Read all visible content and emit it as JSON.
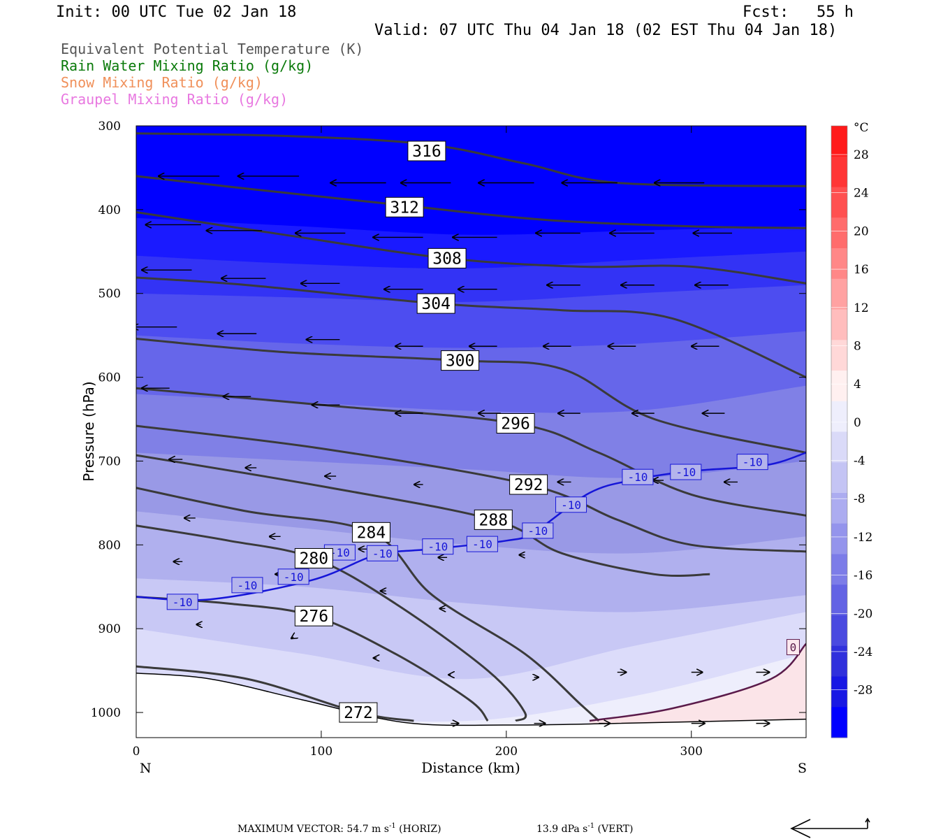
{
  "header": {
    "init": "Init: 00 UTC Tue 02 Jan 18",
    "fcst": "Fcst:   55 h",
    "valid": "Valid: 07 UTC Thu 04 Jan 18 (02 EST Thu 04 Jan 18)"
  },
  "legend": [
    {
      "label": "Equivalent Potential Temperature (K)",
      "color": "#555555"
    },
    {
      "label": "Rain Water Mixing Ratio (g/kg)",
      "color": "#0a7a0a"
    },
    {
      "label": "Snow Mixing Ratio (g/kg)",
      "color": "#f0905a"
    },
    {
      "label": "Graupel Mixing Ratio (g/kg)",
      "color": "#e878e0"
    }
  ],
  "footer": {
    "max_vector": "MAXIMUM VECTOR:  54.7 m s",
    "sup1": "-1",
    "horiz": " (HORIZ)",
    "vert_val": "13.9 dPa s",
    "sup2": "-1",
    "vert": " (VERT)"
  },
  "chart_data": {
    "type": "cross-section",
    "x_axis": {
      "label": "Distance (km)",
      "range": [
        0,
        362
      ],
      "ticks": [
        0,
        100,
        200,
        300
      ],
      "left_end": "N",
      "right_end": "S"
    },
    "y_axis": {
      "label": "Pressure (hPa)",
      "range": [
        300,
        1030
      ],
      "ticks": [
        300,
        400,
        500,
        600,
        700,
        800,
        900,
        1000
      ],
      "inverted": true
    },
    "colorbar": {
      "unit": "°C",
      "labels": [
        "28",
        "24",
        "20",
        "16",
        "12",
        "8",
        "4",
        "0",
        "-4",
        "-8",
        "-12",
        "-16",
        "-20",
        "-24",
        "-28"
      ],
      "levels": [
        28,
        24,
        20,
        16,
        12,
        8,
        4,
        0,
        -4,
        -8,
        -12,
        -16,
        -20,
        -24,
        -28
      ],
      "colors": [
        "#ff1a1a",
        "#ff3535",
        "#ff5050",
        "#ff6c6c",
        "#ff8787",
        "#ffa2a2",
        "#ffbdbd",
        "#ffd8d8",
        "#fff0f0",
        "#eeeefc",
        "#dadaf8",
        "#c4c4f4",
        "#acacf0",
        "#9494ec",
        "#7c7ce8",
        "#6363e4",
        "#4a4ae0",
        "#3030dc",
        "#1818e4",
        "#0000ff"
      ]
    },
    "temperature_bands": [
      {
        "color": "#0000ff",
        "p": [
          300,
          300,
          300,
          300,
          300
        ]
      },
      {
        "color": "#1a1aff",
        "p": [
          410,
          420,
          430,
          425,
          420
        ]
      },
      {
        "color": "#3333f5",
        "p": [
          455,
          465,
          470,
          460,
          450
        ]
      },
      {
        "color": "#4d4df0",
        "p": [
          500,
          505,
          510,
          500,
          490
        ]
      },
      {
        "color": "#6666ea",
        "p": [
          550,
          560,
          565,
          560,
          545
        ]
      },
      {
        "color": "#8080e6",
        "p": [
          620,
          630,
          640,
          640,
          610
        ]
      },
      {
        "color": "#9999e6",
        "p": [
          690,
          700,
          710,
          720,
          700
        ]
      },
      {
        "color": "#b0b0ee",
        "p": [
          760,
          780,
          800,
          810,
          790
        ]
      },
      {
        "color": "#c8c8f5",
        "p": [
          840,
          850,
          870,
          880,
          860
        ]
      },
      {
        "color": "#dcdcfa",
        "p": [
          900,
          930,
          960,
          920,
          880
        ]
      },
      {
        "color": "#eeeefc",
        "p": [
          960,
          1000,
          1010,
          980,
          930
        ]
      }
    ],
    "theta_e_contours": [
      {
        "label": "316",
        "label_at": [
          157,
          330
        ],
        "points": [
          [
            0,
            309
          ],
          [
            80,
            312
          ],
          [
            157,
            322
          ],
          [
            210,
            345
          ],
          [
            260,
            368
          ],
          [
            362,
            372
          ]
        ]
      },
      {
        "label": "312",
        "label_at": [
          145,
          397
        ],
        "points": [
          [
            0,
            360
          ],
          [
            60,
            375
          ],
          [
            145,
            395
          ],
          [
            220,
            412
          ],
          [
            300,
            420
          ],
          [
            362,
            422
          ]
        ]
      },
      {
        "label": "308",
        "label_at": [
          168,
          458
        ],
        "points": [
          [
            0,
            403
          ],
          [
            80,
            430
          ],
          [
            168,
            458
          ],
          [
            240,
            468
          ],
          [
            300,
            468
          ],
          [
            362,
            488
          ]
        ]
      },
      {
        "label": "304",
        "label_at": [
          162,
          512
        ],
        "points": [
          [
            0,
            481
          ],
          [
            60,
            490
          ],
          [
            162,
            512
          ],
          [
            230,
            520
          ],
          [
            290,
            530
          ],
          [
            362,
            600
          ]
        ]
      },
      {
        "label": "300",
        "label_at": [
          175,
          580
        ],
        "points": [
          [
            0,
            554
          ],
          [
            80,
            570
          ],
          [
            175,
            580
          ],
          [
            230,
            590
          ],
          [
            280,
            650
          ],
          [
            362,
            690
          ]
        ]
      },
      {
        "label": "296",
        "label_at": [
          205,
          655
        ],
        "points": [
          [
            0,
            613
          ],
          [
            100,
            633
          ],
          [
            205,
            655
          ],
          [
            250,
            690
          ],
          [
            300,
            740
          ],
          [
            362,
            765
          ]
        ]
      },
      {
        "label": "292",
        "label_at": [
          212,
          728
        ],
        "points": [
          [
            0,
            658
          ],
          [
            100,
            685
          ],
          [
            212,
            728
          ],
          [
            260,
            770
          ],
          [
            300,
            800
          ],
          [
            362,
            808
          ]
        ]
      },
      {
        "label": "288",
        "label_at": [
          193,
          770
        ],
        "points": [
          [
            0,
            693
          ],
          [
            100,
            730
          ],
          [
            193,
            770
          ],
          [
            230,
            810
          ],
          [
            280,
            835
          ],
          [
            310,
            835
          ]
        ]
      },
      {
        "label": "284",
        "label_at": [
          127,
          785
        ],
        "points": [
          [
            0,
            732
          ],
          [
            60,
            760
          ],
          [
            127,
            785
          ],
          [
            160,
            860
          ],
          [
            210,
            930
          ],
          [
            240,
            990
          ],
          [
            250,
            1010
          ]
        ]
      },
      {
        "label": "280",
        "label_at": [
          96,
          816
        ],
        "points": [
          [
            0,
            777
          ],
          [
            50,
            795
          ],
          [
            96,
            816
          ],
          [
            140,
            870
          ],
          [
            190,
            950
          ],
          [
            210,
            1000
          ],
          [
            205,
            1010
          ]
        ]
      },
      {
        "label": "276",
        "label_at": [
          96,
          885
        ],
        "points": [
          [
            0,
            862
          ],
          [
            50,
            870
          ],
          [
            96,
            885
          ],
          [
            140,
            930
          ],
          [
            180,
            985
          ],
          [
            190,
            1010
          ]
        ]
      },
      {
        "label": "272",
        "label_at": [
          120,
          1000
        ],
        "points": [
          [
            0,
            945
          ],
          [
            60,
            960
          ],
          [
            120,
            1000
          ],
          [
            150,
            1010
          ]
        ]
      }
    ],
    "isotherm_-10": {
      "label": "-10",
      "points": [
        [
          0,
          862
        ],
        [
          40,
          865
        ],
        [
          95,
          842
        ],
        [
          130,
          812
        ],
        [
          160,
          805
        ],
        [
          200,
          795
        ],
        [
          215,
          785
        ],
        [
          245,
          738
        ],
        [
          270,
          722
        ],
        [
          300,
          712
        ],
        [
          340,
          705
        ],
        [
          362,
          690
        ]
      ],
      "label_positions": [
        [
          25,
          868
        ],
        [
          60,
          848
        ],
        [
          85,
          838
        ],
        [
          110,
          809
        ],
        [
          133,
          810
        ],
        [
          163,
          802
        ],
        [
          187,
          799
        ],
        [
          217,
          783
        ],
        [
          235,
          752
        ],
        [
          271,
          719
        ],
        [
          297,
          713
        ],
        [
          333,
          701
        ]
      ]
    },
    "isotherm_0": {
      "label": "0",
      "points": [
        [
          245,
          1010
        ],
        [
          290,
          995
        ],
        [
          343,
          960
        ],
        [
          362,
          918
        ]
      ],
      "label_at": [
        355,
        922
      ]
    },
    "terrain": {
      "points": [
        [
          0,
          953
        ],
        [
          40,
          960
        ],
        [
          90,
          985
        ],
        [
          145,
          1012
        ],
        [
          200,
          1015
        ],
        [
          260,
          1013
        ],
        [
          362,
          1008
        ]
      ],
      "bottom": 1030
    },
    "wind_vectors": [
      [
        45,
        360,
        -55,
        0
      ],
      [
        88,
        360,
        -55,
        0
      ],
      [
        135,
        368,
        -50,
        0
      ],
      [
        170,
        368,
        -45,
        0
      ],
      [
        215,
        368,
        -50,
        0
      ],
      [
        260,
        368,
        -50,
        0
      ],
      [
        307,
        368,
        -45,
        0
      ],
      [
        35,
        418,
        -50,
        0
      ],
      [
        68,
        425,
        -50,
        0
      ],
      [
        113,
        428,
        -45,
        0
      ],
      [
        155,
        433,
        -45,
        0
      ],
      [
        195,
        433,
        -40,
        0
      ],
      [
        240,
        428,
        -40,
        0
      ],
      [
        280,
        428,
        -40,
        0
      ],
      [
        322,
        428,
        -35,
        0
      ],
      [
        30,
        472,
        -45,
        0
      ],
      [
        70,
        482,
        -40,
        0
      ],
      [
        110,
        488,
        -35,
        0
      ],
      [
        155,
        495,
        -35,
        0
      ],
      [
        195,
        495,
        -35,
        0
      ],
      [
        240,
        490,
        -30,
        0
      ],
      [
        280,
        490,
        -30,
        0
      ],
      [
        320,
        490,
        -30,
        0
      ],
      [
        22,
        540,
        -40,
        0
      ],
      [
        65,
        548,
        -35,
        0
      ],
      [
        110,
        555,
        -30,
        0
      ],
      [
        155,
        563,
        -25,
        0
      ],
      [
        195,
        563,
        -25,
        0
      ],
      [
        235,
        563,
        -25,
        0
      ],
      [
        270,
        563,
        -25,
        0
      ],
      [
        315,
        563,
        -25,
        0
      ],
      [
        18,
        613,
        -25,
        0
      ],
      [
        62,
        623,
        -25,
        0
      ],
      [
        110,
        633,
        -25,
        0
      ],
      [
        155,
        643,
        -25,
        0
      ],
      [
        197,
        643,
        -20,
        0
      ],
      [
        240,
        643,
        -20,
        0
      ],
      [
        280,
        643,
        -20,
        0
      ],
      [
        318,
        643,
        -20,
        0
      ],
      [
        25,
        698,
        -12,
        0
      ],
      [
        65,
        708,
        -10,
        0
      ],
      [
        108,
        718,
        -10,
        0
      ],
      [
        155,
        728,
        -8,
        0
      ],
      [
        235,
        725,
        -12,
        0
      ],
      [
        285,
        723,
        -10,
        0
      ],
      [
        325,
        725,
        -12,
        0
      ],
      [
        32,
        768,
        -10,
        0
      ],
      [
        78,
        790,
        -10,
        0
      ],
      [
        125,
        805,
        -8,
        0
      ],
      [
        168,
        815,
        -8,
        0
      ],
      [
        210,
        812,
        -5,
        0
      ],
      [
        25,
        820,
        -8,
        0
      ],
      [
        80,
        835,
        -8,
        0
      ],
      [
        135,
        855,
        -5,
        0
      ],
      [
        167,
        876,
        -5,
        0
      ],
      [
        35,
        895,
        -4,
        0
      ],
      [
        85,
        910,
        -2,
        2
      ],
      [
        130,
        935,
        -3,
        0
      ],
      [
        170,
        955,
        -2,
        0
      ],
      [
        215,
        958,
        4,
        0
      ],
      [
        260,
        952,
        8,
        0
      ],
      [
        300,
        952,
        10,
        0
      ],
      [
        335,
        952,
        12,
        0
      ],
      [
        170,
        1013,
        7,
        0
      ],
      [
        215,
        1013,
        10,
        0
      ],
      [
        250,
        1013,
        10,
        0
      ],
      [
        300,
        1013,
        12,
        0
      ],
      [
        335,
        1013,
        12,
        0
      ]
    ]
  }
}
